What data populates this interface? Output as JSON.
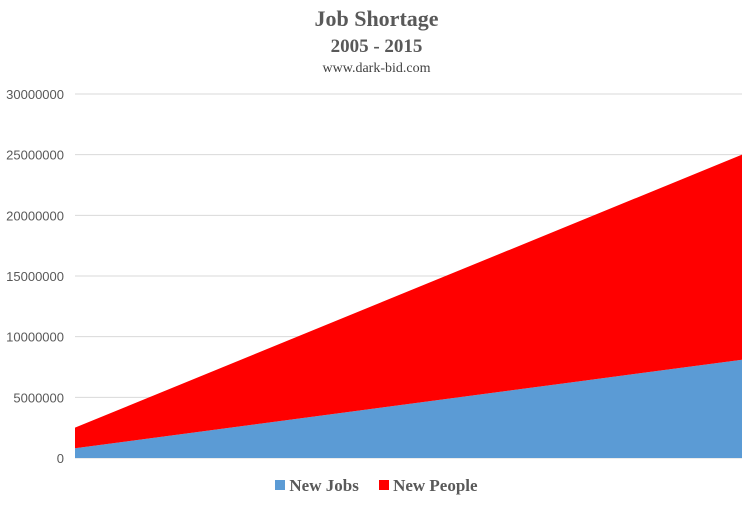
{
  "chart_data": {
    "type": "area",
    "stacked": true,
    "title": "Job Shortage",
    "subtitle": "2005 - 2015",
    "source": "www.dark-bid.com",
    "x": [
      2005,
      2015
    ],
    "ylim": [
      0,
      30000000
    ],
    "yticks": [
      "0",
      "5000000",
      "10000000",
      "15000000",
      "20000000",
      "25000000",
      "30000000"
    ],
    "ytick_values": [
      0,
      5000000,
      10000000,
      15000000,
      20000000,
      25000000,
      30000000
    ],
    "grid": true,
    "legend_position": "bottom",
    "series": [
      {
        "name": "New Jobs",
        "color": "#5b9bd5",
        "values": [
          800000,
          8100000
        ]
      },
      {
        "name": "New People",
        "color": "#ff0000",
        "values": [
          1700000,
          16900000
        ]
      }
    ]
  },
  "colors": {
    "gridline": "#d9d9d9",
    "text": "#595959"
  }
}
